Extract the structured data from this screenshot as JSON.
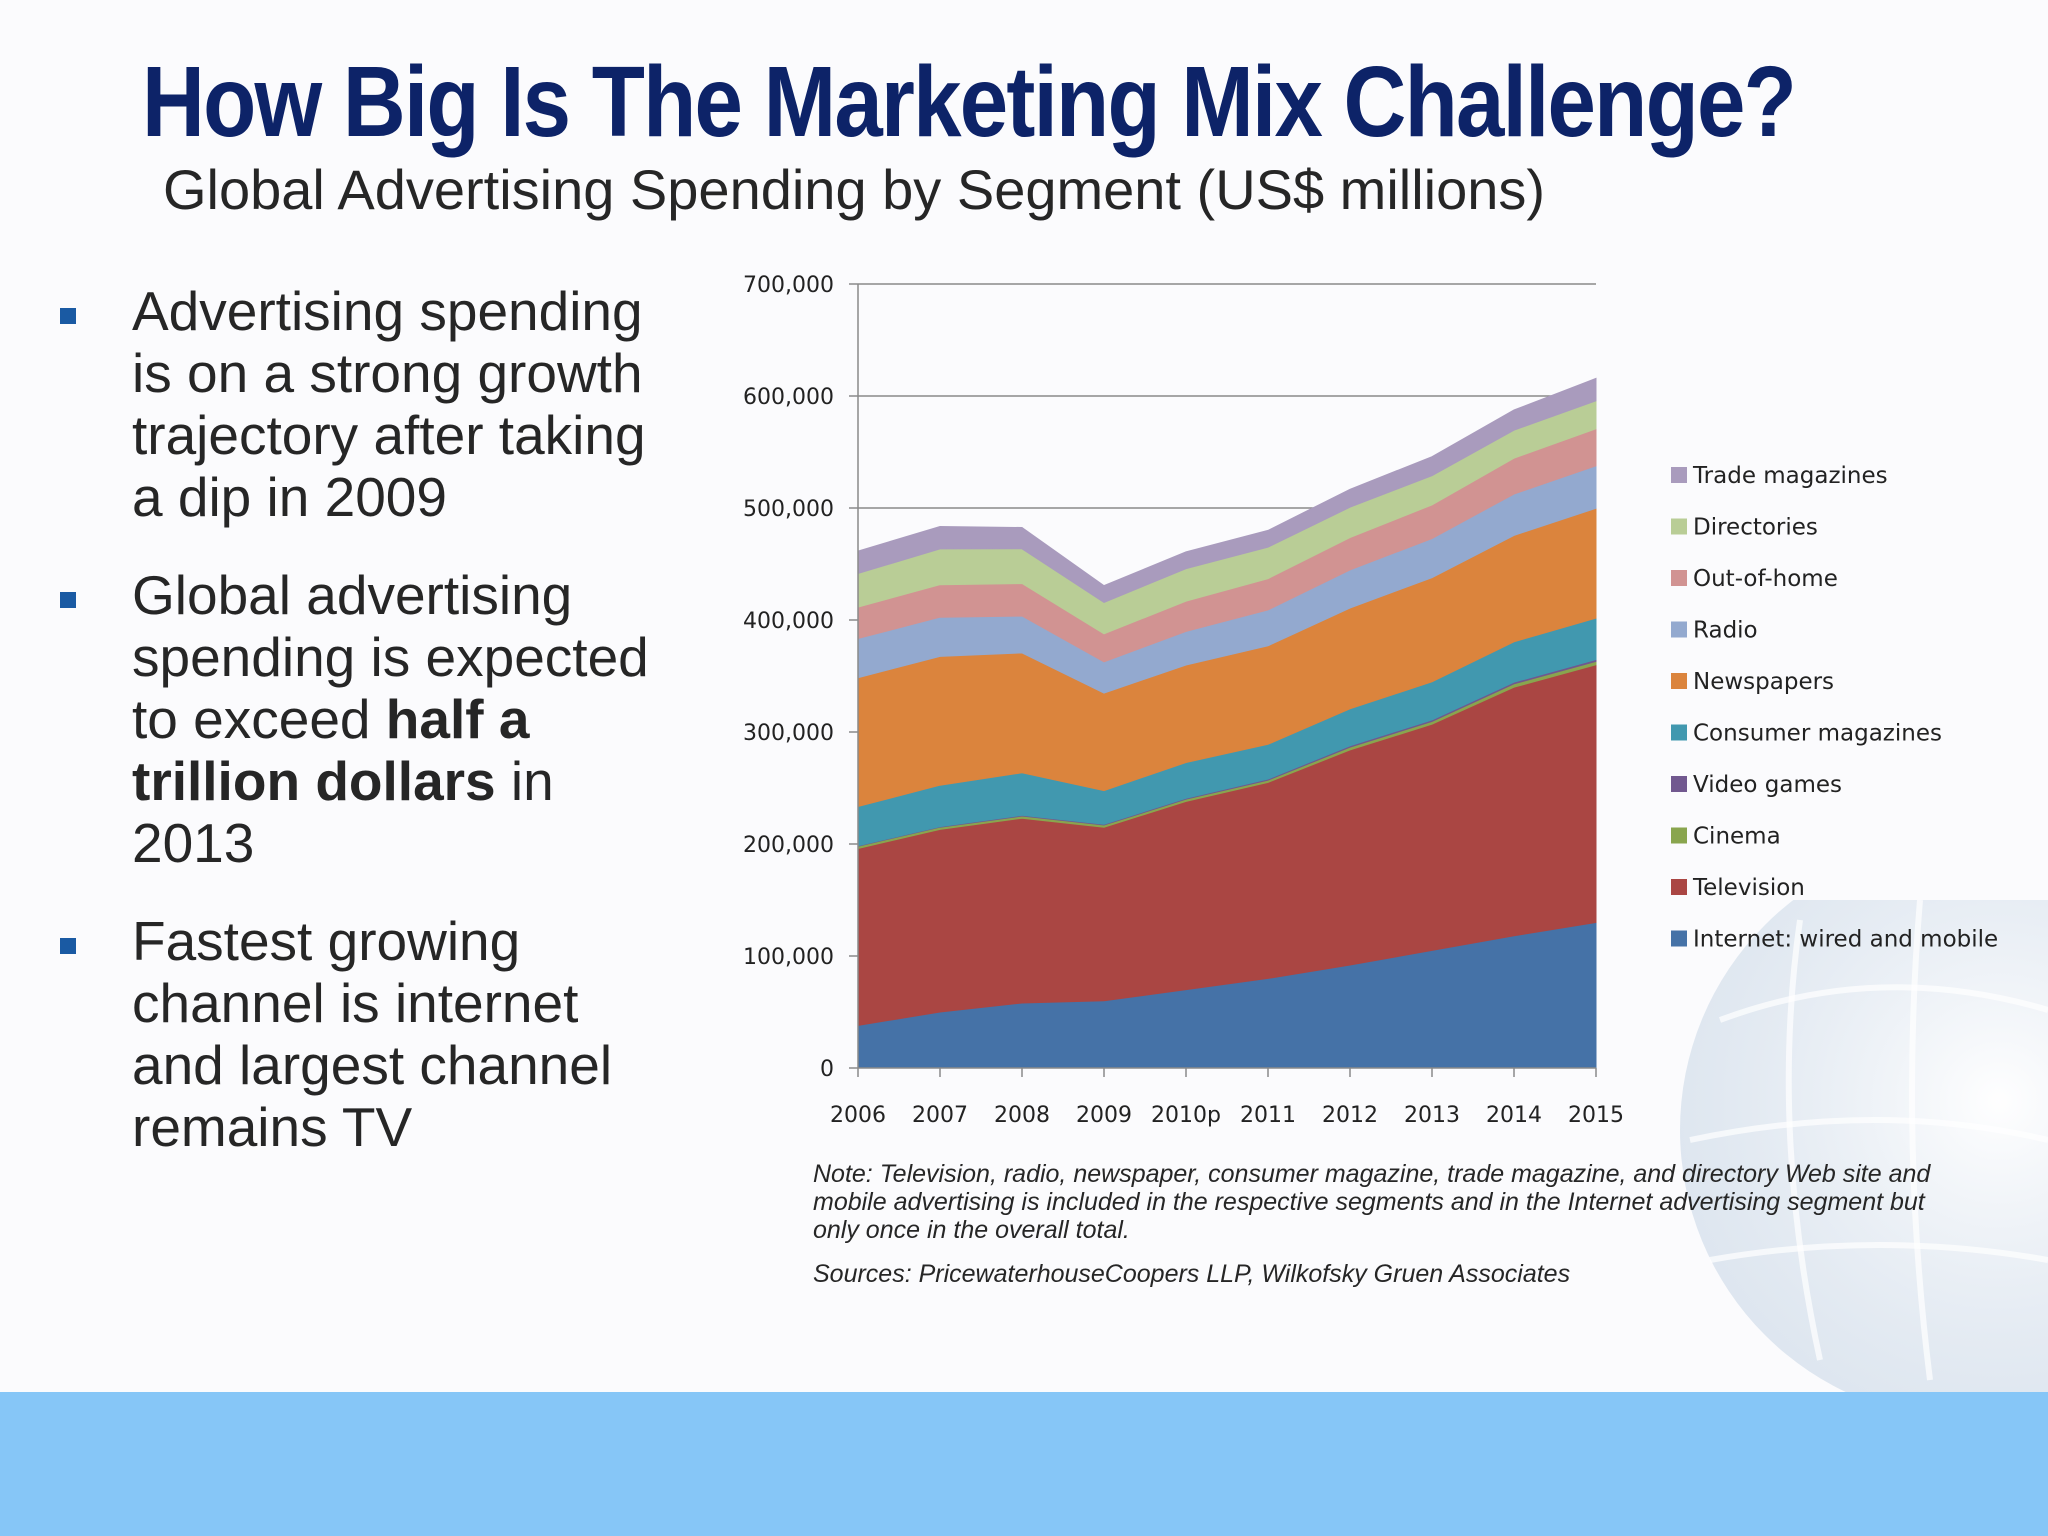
{
  "slide": {
    "title": "How Big Is The Marketing Mix Challenge?",
    "subtitle": "Global Advertising Spending by Segment (US$ millions)"
  },
  "bullets": [
    {
      "text": "Advertising spending is on a strong growth trajectory after taking a dip in 2009"
    },
    {
      "pre": "Global advertising spending is expected to exceed ",
      "bold": "half a trillion dollars",
      "post": " in 2013"
    },
    {
      "text": "Fastest growing channel is internet and largest channel remains TV"
    }
  ],
  "chart_data": {
    "type": "area",
    "stacked": true,
    "title": "Global Advertising Spending by Segment (US$ millions)",
    "categories": [
      "2006",
      "2007",
      "2008",
      "2009",
      "2010p",
      "2011",
      "2012",
      "2013",
      "2014",
      "2015"
    ],
    "ylim": [
      0,
      700000
    ],
    "yticks": [
      "0",
      "100,000",
      "200,000",
      "300,000",
      "400,000",
      "500,000",
      "600,000",
      "700,000"
    ],
    "grid": true,
    "legend_position": "right",
    "series": [
      {
        "name": "Internet: wired and mobile",
        "color": "#4572a7",
        "values": [
          38000,
          50000,
          58000,
          60000,
          70000,
          80000,
          92000,
          105000,
          118000,
          130000
        ]
      },
      {
        "name": "Television",
        "color": "#aa4643",
        "values": [
          158000,
          163000,
          165000,
          155000,
          168000,
          175000,
          192000,
          202000,
          222000,
          230000
        ]
      },
      {
        "name": "Cinema",
        "color": "#89a54e",
        "values": [
          2000,
          2000,
          2000,
          2000,
          2000,
          2000,
          2500,
          2500,
          3000,
          3000
        ]
      },
      {
        "name": "Video games",
        "color": "#71588f",
        "values": [
          500,
          500,
          600,
          700,
          800,
          1000,
          1200,
          1300,
          1500,
          1700
        ]
      },
      {
        "name": "Consumer magazines",
        "color": "#4198af",
        "values": [
          35000,
          37000,
          38000,
          30000,
          32000,
          31000,
          33000,
          34000,
          36000,
          37000
        ]
      },
      {
        "name": "Newspapers",
        "color": "#db843d",
        "values": [
          115000,
          115000,
          107000,
          87000,
          87000,
          88000,
          90000,
          93000,
          95000,
          98000
        ]
      },
      {
        "name": "Radio",
        "color": "#93a9cf",
        "values": [
          35000,
          35000,
          33000,
          28000,
          30000,
          32000,
          34000,
          35000,
          37000,
          38000
        ]
      },
      {
        "name": "Out-of-home",
        "color": "#d19392",
        "values": [
          28000,
          29000,
          29000,
          25000,
          27000,
          28000,
          29000,
          30000,
          32000,
          33000
        ]
      },
      {
        "name": "Directories",
        "color": "#b9cd96",
        "values": [
          30000,
          32000,
          31000,
          28000,
          29000,
          28000,
          27000,
          26000,
          25000,
          25000
        ]
      },
      {
        "name": "Trade magazines",
        "color": "#a99bbd",
        "values": [
          20000,
          20000,
          19000,
          15000,
          15000,
          15000,
          16000,
          17000,
          18000,
          20000
        ]
      }
    ],
    "note": "Note: Television, radio, newspaper, consumer magazine, trade magazine, and directory Web site and mobile advertising is included in the respective segments and in the Internet advertising segment but only once in the overall total.",
    "source": "Sources: PricewaterhouseCoopers LLP, Wilkofsky Gruen Associates"
  }
}
